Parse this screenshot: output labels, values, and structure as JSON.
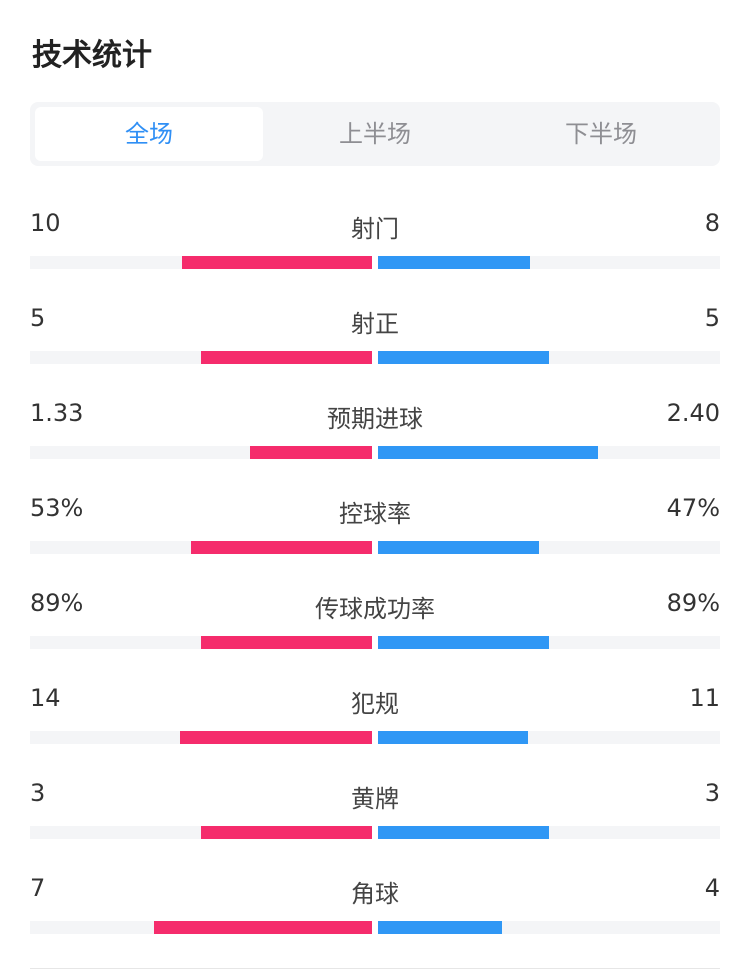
{
  "title": "技术统计",
  "tabs": [
    {
      "label": "全场",
      "active": true
    },
    {
      "label": "上半场",
      "active": false
    },
    {
      "label": "下半场",
      "active": false
    }
  ],
  "colors": {
    "home": "#f52c6c",
    "away": "#2f97f5",
    "active_tab": "#2f8ff5"
  },
  "stats": [
    {
      "label": "射门",
      "home": "10",
      "away": "8",
      "home_fill": 0.555,
      "away_fill": 0.444
    },
    {
      "label": "射正",
      "home": "5",
      "away": "5",
      "home_fill": 0.5,
      "away_fill": 0.5
    },
    {
      "label": "预期进球",
      "home": "1.33",
      "away": "2.40",
      "home_fill": 0.357,
      "away_fill": 0.643
    },
    {
      "label": "控球率",
      "home": "53%",
      "away": "47%",
      "home_fill": 0.53,
      "away_fill": 0.47
    },
    {
      "label": "传球成功率",
      "home": "89%",
      "away": "89%",
      "home_fill": 0.5,
      "away_fill": 0.5
    },
    {
      "label": "犯规",
      "home": "14",
      "away": "11",
      "home_fill": 0.56,
      "away_fill": 0.44
    },
    {
      "label": "黄牌",
      "home": "3",
      "away": "3",
      "home_fill": 0.5,
      "away_fill": 0.5
    },
    {
      "label": "角球",
      "home": "7",
      "away": "4",
      "home_fill": 0.636,
      "away_fill": 0.364
    }
  ]
}
